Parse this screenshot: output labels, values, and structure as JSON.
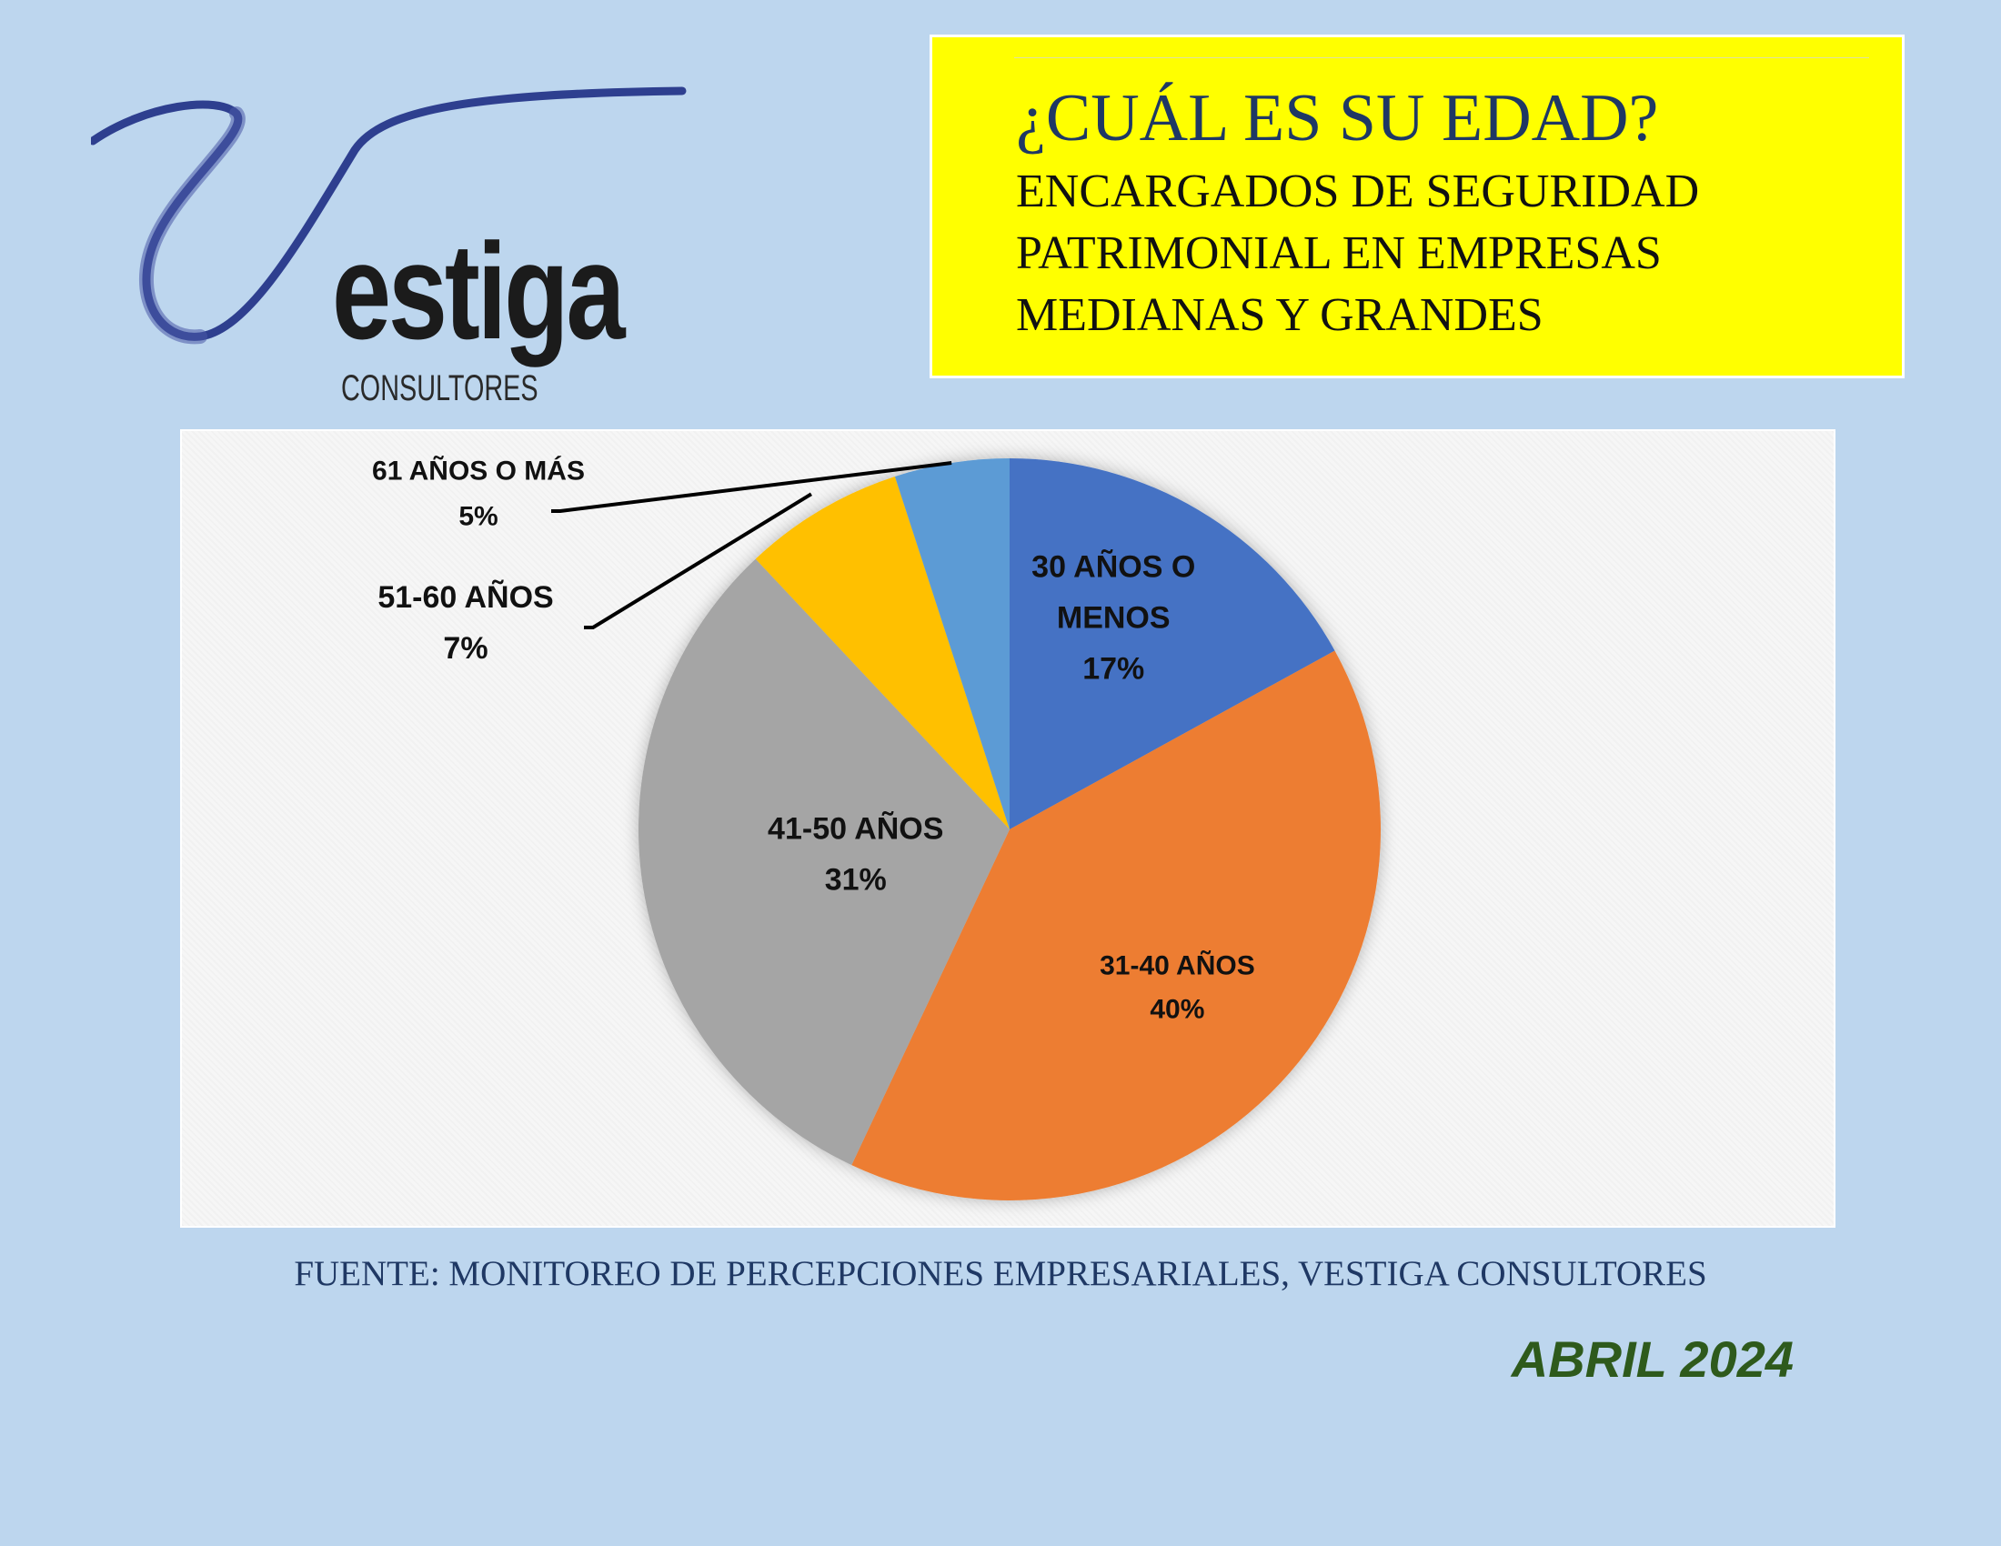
{
  "logo": {
    "word": "estiga",
    "subtitle": "CONSULTORES",
    "accent_color": "#2e3f8f"
  },
  "title": {
    "main": "¿CUÁL ES SU EDAD?",
    "sub_lines": [
      "ENCARGADOS DE SEGURIDAD",
      "PATRIMONIAL EN EMPRESAS",
      "MEDIANAS Y GRANDES"
    ],
    "box_color": "#ffff00"
  },
  "chart_data": {
    "type": "pie",
    "categories": [
      "30 AÑOS O MENOS",
      "31-40 AÑOS",
      "41-50 AÑOS",
      "51-60 AÑOS",
      "61 AÑOS O MÁS"
    ],
    "values": [
      17,
      40,
      31,
      7,
      5
    ],
    "value_labels": [
      "17%",
      "40%",
      "31%",
      "7%",
      "5%"
    ],
    "colors": [
      "#4472c4",
      "#ed7d31",
      "#a5a5a5",
      "#ffc000",
      "#5b9bd5"
    ],
    "label_lines": [
      [
        "30 AÑOS O",
        "MENOS",
        "17%"
      ],
      [
        "31-40 AÑOS",
        "40%"
      ],
      [
        "41-50 AÑOS",
        "31%"
      ],
      [
        "51-60 AÑOS",
        "7%"
      ],
      [
        "61 AÑOS O MÁS",
        "5%"
      ]
    ],
    "start_angle_deg": 0,
    "direction": "clockwise",
    "legend": "none"
  },
  "source": "FUENTE: MONITOREO DE PERCEPCIONES EMPRESARIALES, VESTIGA CONSULTORES",
  "date": "ABRIL 2024"
}
